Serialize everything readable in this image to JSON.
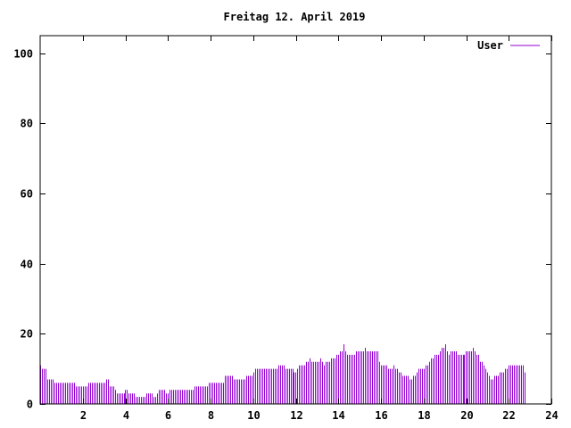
{
  "chart_data": {
    "type": "bar",
    "title": "Freitag 12. April 2019",
    "xlabel": "",
    "ylabel": "",
    "xlim": [
      0,
      24
    ],
    "ylim": [
      0,
      105
    ],
    "xticks": [
      2,
      4,
      6,
      8,
      10,
      12,
      14,
      16,
      18,
      20,
      22,
      24
    ],
    "yticks": [
      0,
      20,
      40,
      60,
      80,
      100
    ],
    "grid": false,
    "legend_position": "top-right",
    "series": [
      {
        "name": "User",
        "color": "#9400d3",
        "x_step_hours": 0.08333,
        "values": [
          11,
          10,
          10,
          10,
          7,
          7,
          7,
          7,
          6,
          6,
          6,
          6,
          6,
          6,
          6,
          6,
          6,
          6,
          6,
          6,
          5,
          5,
          5,
          5,
          5,
          5,
          5,
          6,
          6,
          6,
          6,
          6,
          6,
          6,
          6,
          6,
          6,
          7,
          7,
          5,
          5,
          5,
          4,
          3,
          3,
          3,
          3,
          3,
          4,
          4,
          3,
          3,
          3,
          3,
          2,
          2,
          2,
          2,
          2,
          2,
          3,
          3,
          3,
          3,
          2,
          2,
          3,
          4,
          4,
          4,
          4,
          3,
          3,
          4,
          4,
          4,
          4,
          4,
          4,
          4,
          4,
          4,
          4,
          4,
          4,
          4,
          4,
          5,
          5,
          5,
          5,
          5,
          5,
          5,
          5,
          6,
          6,
          6,
          6,
          6,
          6,
          6,
          6,
          6,
          8,
          8,
          8,
          8,
          8,
          7,
          7,
          7,
          7,
          7,
          7,
          7,
          8,
          8,
          8,
          8,
          9,
          10,
          10,
          10,
          10,
          10,
          10,
          10,
          10,
          10,
          10,
          10,
          10,
          10,
          11,
          11,
          11,
          11,
          10,
          10,
          10,
          10,
          10,
          9,
          9,
          10,
          11,
          11,
          11,
          11,
          12,
          12,
          13,
          12,
          12,
          12,
          12,
          12,
          13,
          12,
          11,
          12,
          12,
          12,
          13,
          13,
          13,
          14,
          14,
          15,
          15,
          17,
          15,
          14,
          14,
          14,
          14,
          14,
          15,
          15,
          15,
          15,
          15,
          16,
          15,
          15,
          15,
          15,
          15,
          15,
          15,
          12,
          11,
          11,
          11,
          11,
          10,
          10,
          10,
          11,
          10,
          10,
          9,
          9,
          8,
          8,
          8,
          8,
          7,
          7,
          8,
          8,
          9,
          10,
          10,
          10,
          10,
          11,
          11,
          12,
          13,
          13,
          14,
          14,
          14,
          15,
          16,
          16,
          17,
          15,
          14,
          15,
          15,
          15,
          15,
          14,
          14,
          14,
          14,
          14,
          15,
          15,
          15,
          15,
          16,
          15,
          14,
          14,
          12,
          12,
          11,
          10,
          9,
          8,
          7,
          7,
          8,
          8,
          8,
          9,
          9,
          9,
          10,
          10,
          11,
          11,
          11,
          11,
          11,
          11,
          11,
          11,
          11,
          9
        ]
      }
    ]
  }
}
